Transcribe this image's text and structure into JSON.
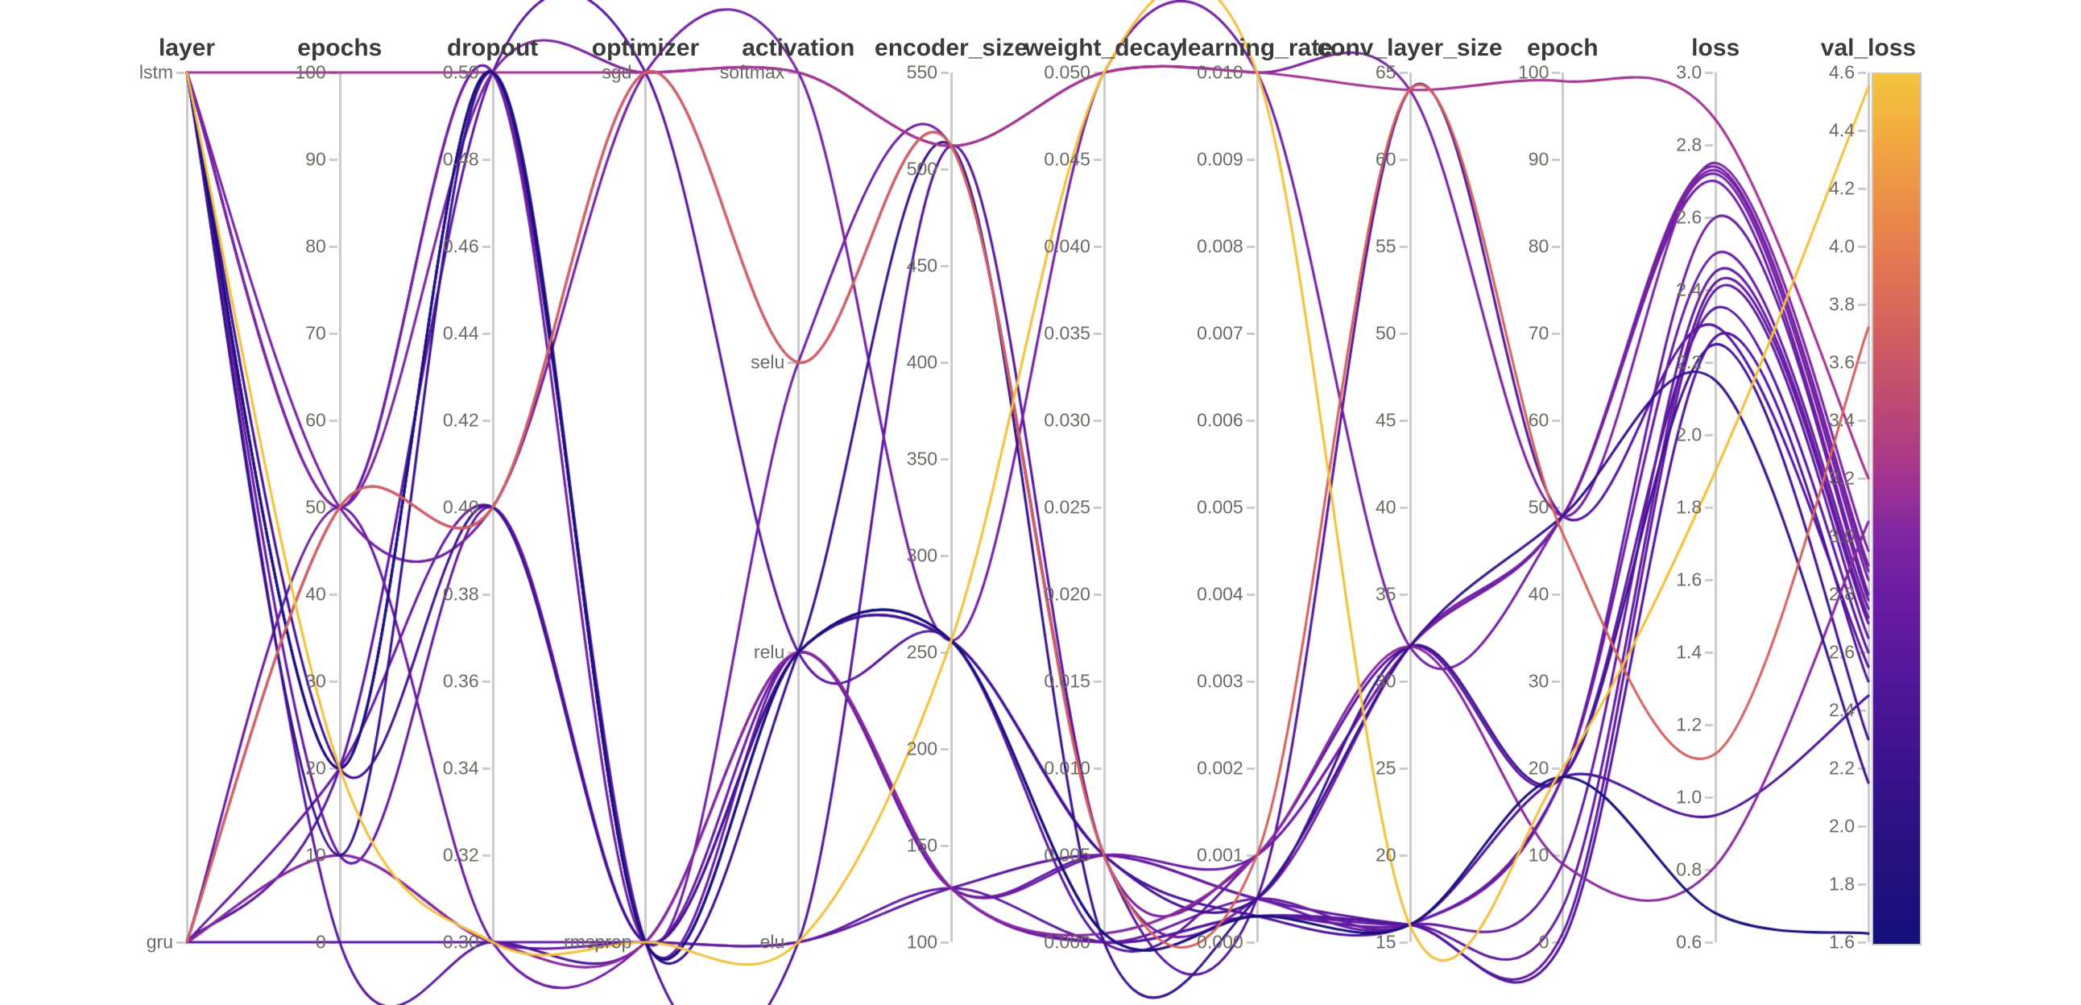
{
  "chart_data": {
    "type": "parallel-coordinates",
    "title": "",
    "color_metric": "val_loss",
    "legend_position": "right-colorbar",
    "grid": false,
    "colorbar": {
      "min": 1.6,
      "max": 4.6,
      "stops": [
        {
          "v": 1.6,
          "c": "#15107c"
        },
        {
          "v": 1.9,
          "c": "#26117f"
        },
        {
          "v": 2.2,
          "c": "#3a128e"
        },
        {
          "v": 2.5,
          "c": "#51169b"
        },
        {
          "v": 2.8,
          "c": "#6b1ca3"
        },
        {
          "v": 3.0,
          "c": "#7f26a2"
        },
        {
          "v": 3.2,
          "c": "#a23391"
        },
        {
          "v": 3.4,
          "c": "#b84479"
        },
        {
          "v": 3.7,
          "c": "#d25f5f"
        },
        {
          "v": 4.0,
          "c": "#e77d4f"
        },
        {
          "v": 4.3,
          "c": "#f09f42"
        },
        {
          "v": 4.6,
          "c": "#f4c63d"
        }
      ]
    },
    "axes": [
      {
        "key": "layer",
        "title": "layer",
        "type": "categorical",
        "categories": [
          "lstm",
          "gru"
        ]
      },
      {
        "key": "epochs",
        "title": "epochs",
        "type": "linear",
        "min": 0,
        "max": 100,
        "tick_labels": [
          "100",
          "90",
          "80",
          "70",
          "60",
          "50",
          "40",
          "30",
          "20",
          "10",
          "0"
        ]
      },
      {
        "key": "dropout",
        "title": "dropout",
        "type": "linear",
        "min": 0.3,
        "max": 0.5,
        "tick_labels": [
          "0.50",
          "0.48",
          "0.46",
          "0.44",
          "0.42",
          "0.40",
          "0.38",
          "0.36",
          "0.34",
          "0.32",
          "0.30"
        ]
      },
      {
        "key": "optimizer",
        "title": "optimizer",
        "type": "categorical",
        "categories": [
          "sgd",
          "rmsprop"
        ]
      },
      {
        "key": "activation",
        "title": "activation",
        "type": "categorical",
        "categories": [
          "softmax",
          "selu",
          "relu",
          "elu"
        ]
      },
      {
        "key": "encoder_size",
        "title": "encoder_size",
        "type": "linear",
        "min": 100,
        "max": 550,
        "tick_labels": [
          "550",
          "500",
          "450",
          "400",
          "350",
          "300",
          "250",
          "200",
          "150",
          "100"
        ]
      },
      {
        "key": "weight_decay",
        "title": "weight_decay",
        "type": "linear",
        "min": 0,
        "max": 0.05,
        "tick_labels": [
          "0.050",
          "0.045",
          "0.040",
          "0.035",
          "0.030",
          "0.025",
          "0.020",
          "0.015",
          "0.010",
          "0.005",
          "0.000"
        ]
      },
      {
        "key": "learning_rate",
        "title": "learning_rate",
        "type": "linear",
        "min": 0,
        "max": 0.01,
        "tick_labels": [
          "0.010",
          "0.009",
          "0.008",
          "0.007",
          "0.006",
          "0.005",
          "0.004",
          "0.003",
          "0.002",
          "0.001",
          "0.000"
        ]
      },
      {
        "key": "conv_layer_size",
        "title": "conv_layer_size",
        "type": "linear",
        "min": 15,
        "max": 65,
        "tick_labels": [
          "65",
          "60",
          "55",
          "50",
          "45",
          "40",
          "35",
          "30",
          "25",
          "20",
          "15"
        ]
      },
      {
        "key": "epoch",
        "title": "epoch",
        "type": "linear",
        "min": 0,
        "max": 100,
        "tick_labels": [
          "100",
          "90",
          "80",
          "70",
          "60",
          "50",
          "40",
          "30",
          "20",
          "10",
          "0"
        ]
      },
      {
        "key": "loss",
        "title": "loss",
        "type": "linear",
        "min": 0.6,
        "max": 3.0,
        "tick_labels": [
          "3.0",
          "2.8",
          "2.6",
          "2.4",
          "2.2",
          "2.0",
          "1.8",
          "1.6",
          "1.4",
          "1.2",
          "1.0",
          "0.8",
          "0.6"
        ]
      },
      {
        "key": "val_loss",
        "title": "val_loss",
        "type": "linear",
        "min": 1.6,
        "max": 4.6,
        "tick_labels": [
          "4.6",
          "4.4",
          "4.2",
          "4.0",
          "3.8",
          "3.6",
          "3.4",
          "3.2",
          "3.0",
          "2.8",
          "2.6",
          "2.4",
          "2.2",
          "2.0",
          "1.8",
          "1.6"
        ]
      }
    ],
    "runs": [
      {
        "layer": "lstm",
        "epochs": 20,
        "dropout": 0.3,
        "optimizer": "rmsprop",
        "activation": "elu",
        "encoder_size": 256,
        "weight_decay": 0.05,
        "learning_rate": 0.01,
        "conv_layer_size": 16,
        "epoch": 20,
        "loss": 1.9,
        "val_loss": 4.55
      },
      {
        "layer": "lstm",
        "epochs": 100,
        "dropout": 0.5,
        "optimizer": "sgd",
        "activation": "softmax",
        "encoder_size": 512,
        "weight_decay": 0.05,
        "learning_rate": 0.01,
        "conv_layer_size": 64,
        "epoch": 99,
        "loss": 2.87,
        "val_loss": 3.2
      },
      {
        "layer": "gru",
        "epochs": 50,
        "dropout": 0.4,
        "optimizer": "sgd",
        "activation": "selu",
        "encoder_size": 512,
        "weight_decay": 0.005,
        "learning_rate": 0.001,
        "conv_layer_size": 64,
        "epoch": 47,
        "loss": 1.12,
        "val_loss": 3.72
      },
      {
        "layer": "gru",
        "epochs": 10,
        "dropout": 0.3,
        "optimizer": "rmsprop",
        "activation": "relu",
        "encoder_size": 128,
        "weight_decay": 0.0005,
        "learning_rate": 0.001,
        "conv_layer_size": 32,
        "epoch": 9,
        "loss": 0.81,
        "val_loss": 3.05
      },
      {
        "layer": "lstm",
        "epochs": 20,
        "dropout": 0.5,
        "optimizer": "rmsprop",
        "activation": "relu",
        "encoder_size": 256,
        "weight_decay": 0.0005,
        "learning_rate": 0.0003,
        "conv_layer_size": 16,
        "epoch": 19,
        "loss": 0.68,
        "val_loss": 1.63
      },
      {
        "layer": "lstm",
        "epochs": 20,
        "dropout": 0.5,
        "optimizer": "rmsprop",
        "activation": "relu",
        "encoder_size": 256,
        "weight_decay": 0.005,
        "learning_rate": 0.0003,
        "conv_layer_size": 16,
        "epoch": 19,
        "loss": 0.95,
        "val_loss": 2.45
      },
      {
        "layer": "lstm",
        "epochs": 10,
        "dropout": 0.5,
        "optimizer": "rmsprop",
        "activation": "relu",
        "encoder_size": 512,
        "weight_decay": 0.0,
        "learning_rate": 0.0005,
        "conv_layer_size": 32,
        "epoch": 49,
        "loss": 2.15,
        "val_loss": 2.15
      },
      {
        "layer": "lstm",
        "epochs": 50,
        "dropout": 0.5,
        "optimizer": "sgd",
        "activation": "softmax",
        "encoder_size": 512,
        "weight_decay": 0.05,
        "learning_rate": 0.01,
        "conv_layer_size": 64,
        "epoch": 49,
        "loss": 2.75,
        "val_loss": 2.95
      },
      {
        "layer": "lstm",
        "epochs": 50,
        "dropout": 0.4,
        "optimizer": "sgd",
        "activation": "softmax",
        "encoder_size": 256,
        "weight_decay": 0.05,
        "learning_rate": 0.01,
        "conv_layer_size": 32,
        "epoch": 49,
        "loss": 2.73,
        "val_loss": 2.9
      },
      {
        "layer": "gru",
        "epochs": 50,
        "dropout": 0.4,
        "optimizer": "sgd",
        "activation": "selu",
        "encoder_size": 512,
        "weight_decay": 0.005,
        "learning_rate": 0.001,
        "conv_layer_size": 32,
        "epoch": 49,
        "loss": 2.74,
        "val_loss": 2.88
      },
      {
        "layer": "lstm",
        "epochs": 50,
        "dropout": 0.5,
        "optimizer": "rmsprop",
        "activation": "selu",
        "encoder_size": 512,
        "weight_decay": 0.005,
        "learning_rate": 0.0005,
        "conv_layer_size": 32,
        "epoch": 49,
        "loss": 2.72,
        "val_loss": 2.85
      },
      {
        "layer": "gru",
        "epochs": 50,
        "dropout": 0.3,
        "optimizer": "rmsprop",
        "activation": "relu",
        "encoder_size": 128,
        "weight_decay": 0.005,
        "learning_rate": 0.001,
        "conv_layer_size": 32,
        "epoch": 49,
        "loss": 2.7,
        "val_loss": 2.8
      },
      {
        "layer": "lstm",
        "epochs": 20,
        "dropout": 0.5,
        "optimizer": "rmsprop",
        "activation": "relu",
        "encoder_size": 128,
        "weight_decay": 0.0,
        "learning_rate": 0.0005,
        "conv_layer_size": 16,
        "epoch": 19,
        "loss": 2.6,
        "val_loss": 2.78
      },
      {
        "layer": "gru",
        "epochs": 20,
        "dropout": 0.4,
        "optimizer": "rmsprop",
        "activation": "relu",
        "encoder_size": 128,
        "weight_decay": 0.005,
        "learning_rate": 0.0005,
        "conv_layer_size": 16,
        "epoch": 19,
        "loss": 2.5,
        "val_loss": 2.75
      },
      {
        "layer": "lstm",
        "epochs": 10,
        "dropout": 0.4,
        "optimizer": "rmsprop",
        "activation": "relu",
        "encoder_size": 256,
        "weight_decay": 0.0005,
        "learning_rate": 0.0003,
        "conv_layer_size": 16,
        "epoch": 9,
        "loss": 2.45,
        "val_loss": 2.72
      },
      {
        "layer": "gru",
        "epochs": 10,
        "dropout": 0.3,
        "optimizer": "rmsprop",
        "activation": "elu",
        "encoder_size": 128,
        "weight_decay": 0.0,
        "learning_rate": 0.0003,
        "conv_layer_size": 16,
        "epoch": 4,
        "loss": 2.42,
        "val_loss": 2.7
      },
      {
        "layer": "lstm",
        "epochs": 0,
        "dropout": 0.3,
        "optimizer": "rmsprop",
        "activation": "elu",
        "encoder_size": 128,
        "weight_decay": 0.005,
        "learning_rate": 0.0005,
        "conv_layer_size": 16,
        "epoch": 1,
        "loss": 2.4,
        "val_loss": 2.65
      },
      {
        "layer": "gru",
        "epochs": 20,
        "dropout": 0.5,
        "optimizer": "sgd",
        "activation": "relu",
        "encoder_size": 256,
        "weight_decay": 0.0,
        "learning_rate": 0.001,
        "conv_layer_size": 32,
        "epoch": 19,
        "loss": 2.35,
        "val_loss": 2.6
      },
      {
        "layer": "lstm",
        "epochs": 50,
        "dropout": 0.5,
        "optimizer": "rmsprop",
        "activation": "elu",
        "encoder_size": 512,
        "weight_decay": 0.005,
        "learning_rate": 0.0005,
        "conv_layer_size": 64,
        "epoch": 49,
        "loss": 2.3,
        "val_loss": 2.55
      },
      {
        "layer": "gru",
        "epochs": 0,
        "dropout": 0.3,
        "optimizer": "rmsprop",
        "activation": "relu",
        "encoder_size": 128,
        "weight_decay": 0.0,
        "learning_rate": 0.0003,
        "conv_layer_size": 16,
        "epoch": 0,
        "loss": 2.27,
        "val_loss": 2.5
      },
      {
        "layer": "lstm",
        "epochs": 20,
        "dropout": 0.4,
        "optimizer": "rmsprop",
        "activation": "relu",
        "encoder_size": 256,
        "weight_decay": 0.005,
        "learning_rate": 0.0005,
        "conv_layer_size": 32,
        "epoch": 19,
        "loss": 2.25,
        "val_loss": 2.3
      }
    ]
  },
  "colors": {
    "background": "#ffffff",
    "axis_line": "#cccccc",
    "tick_text": "#6e6a64",
    "title_text": "#3b3b3b"
  }
}
